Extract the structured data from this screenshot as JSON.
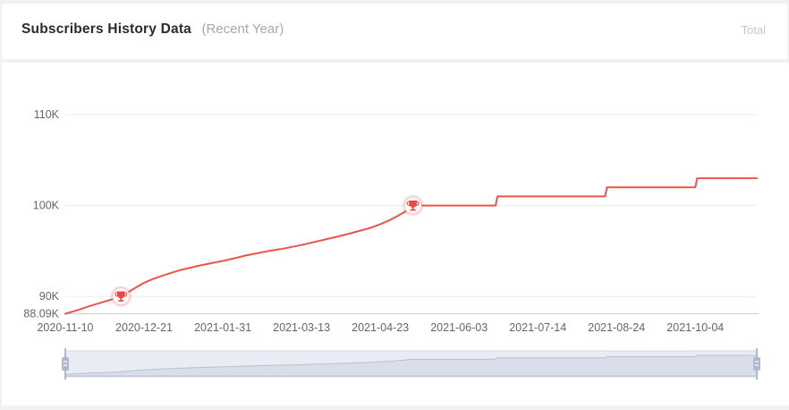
{
  "header": {
    "title": "Subscribers History Data",
    "subtitle": "(Recent Year)",
    "legend": "Total"
  },
  "colors": {
    "line": "#ec544c",
    "trophy": "#ef4640",
    "trophy_halo": "rgba(240,80,70,0.16)",
    "trophy_ring": "#f5b7b2",
    "grid": "#ececec",
    "axis_line": "#cfcfcf",
    "axis_label": "#666666",
    "zoom_track_bg": "#e9ecf3",
    "zoom_track_border": "#d3d8e3",
    "zoom_shadow_fill": "#d9deea",
    "zoom_shadow_line": "#b8c0d2",
    "zoom_handle": "#aeb9cd",
    "zoom_handle_grip": "#ffffff"
  },
  "chart_data": {
    "type": "line",
    "title": "Subscribers History Data (Recent Year)",
    "series_name": "Total",
    "x_unit": "days since 2020-11-10",
    "x_range_days": [
      0,
      360
    ],
    "ylim": [
      88090,
      110000
    ],
    "grid": true,
    "legend_position": "top-right",
    "y_ticks": [
      {
        "label": "88.09K",
        "value": 88090,
        "grid": false
      },
      {
        "label": "90K",
        "value": 90000,
        "grid": true
      },
      {
        "label": "100K",
        "value": 100000,
        "grid": true
      },
      {
        "label": "110K",
        "value": 110000,
        "grid": true
      }
    ],
    "x_ticks": [
      {
        "label": "2020-11-10",
        "day": 0
      },
      {
        "label": "2020-12-21",
        "day": 41
      },
      {
        "label": "2021-01-31",
        "day": 82
      },
      {
        "label": "2021-03-13",
        "day": 123
      },
      {
        "label": "2021-04-23",
        "day": 164
      },
      {
        "label": "2021-06-03",
        "day": 205
      },
      {
        "label": "2021-07-14",
        "day": 246
      },
      {
        "label": "2021-08-24",
        "day": 287
      },
      {
        "label": "2021-10-04",
        "day": 328
      }
    ],
    "points": [
      [
        0,
        88090
      ],
      [
        4,
        88350
      ],
      [
        8,
        88600
      ],
      [
        12,
        88900
      ],
      [
        16,
        89150
      ],
      [
        20,
        89400
      ],
      [
        24,
        89650
      ],
      [
        29,
        90000
      ],
      [
        33,
        90500
      ],
      [
        37,
        91000
      ],
      [
        41,
        91500
      ],
      [
        46,
        91950
      ],
      [
        51,
        92300
      ],
      [
        56,
        92650
      ],
      [
        61,
        92950
      ],
      [
        66,
        93200
      ],
      [
        71,
        93450
      ],
      [
        76,
        93650
      ],
      [
        82,
        93900
      ],
      [
        88,
        94200
      ],
      [
        94,
        94500
      ],
      [
        100,
        94750
      ],
      [
        106,
        95000
      ],
      [
        112,
        95200
      ],
      [
        118,
        95450
      ],
      [
        123,
        95650
      ],
      [
        129,
        95950
      ],
      [
        135,
        96250
      ],
      [
        141,
        96550
      ],
      [
        147,
        96850
      ],
      [
        153,
        97200
      ],
      [
        159,
        97550
      ],
      [
        164,
        97950
      ],
      [
        169,
        98400
      ],
      [
        173,
        98850
      ],
      [
        177,
        99350
      ],
      [
        181,
        100000
      ],
      [
        224,
        100000
      ],
      [
        225,
        101000
      ],
      [
        281,
        101000
      ],
      [
        282,
        102000
      ],
      [
        328,
        102000
      ],
      [
        329,
        103000
      ],
      [
        360,
        103000
      ]
    ],
    "milestones": [
      {
        "day": 29,
        "value": 90000,
        "name": "90K subscribers trophy"
      },
      {
        "day": 181,
        "value": 100000,
        "name": "100K subscribers trophy"
      }
    ]
  }
}
